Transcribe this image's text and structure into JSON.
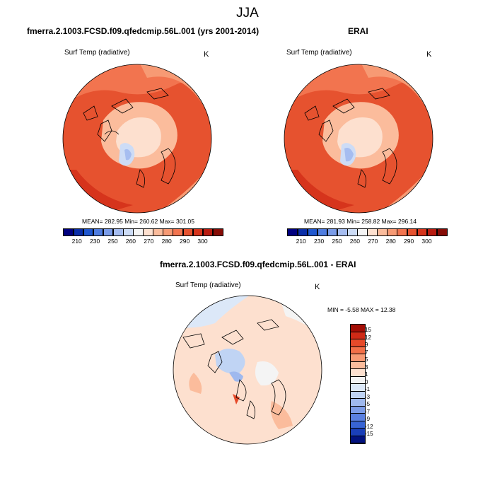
{
  "title": "JJA",
  "panel_left": {
    "title": "fmerra.2.1003.FCSD.f09.qfedcmip.56L.001 (yrs 2001-2014)",
    "variable": "Surf Temp (radiative)",
    "unit": "K",
    "stats": "MEAN= 282.95  Min= 260.62  Max= 301.05"
  },
  "panel_right": {
    "title": "ERAI",
    "variable": "Surf Temp (radiative)",
    "unit": "K",
    "stats": "MEAN= 281.93  Min= 258.82  Max= 296.14"
  },
  "panel_diff": {
    "title": "fmerra.2.1003.FCSD.f09.qfedcmip.56L.001 - ERAI",
    "variable": "Surf Temp (radiative)",
    "unit": "K",
    "stats": "MIN =  -5.58 MAX =  12.38"
  },
  "abs_colorbar": {
    "colors": [
      "#00007f",
      "#0a2ea8",
      "#1f57cf",
      "#4f7de0",
      "#7a9ce8",
      "#a6bdf0",
      "#cddcf6",
      "#f4f4f4",
      "#fde0cf",
      "#fbbc9c",
      "#f79a74",
      "#f2744f",
      "#e6522f",
      "#d6341c",
      "#b81b10",
      "#860c06"
    ],
    "tick_labels": [
      "210",
      "230",
      "250",
      "260",
      "270",
      "280",
      "290",
      "300"
    ]
  },
  "diff_colorbar": {
    "colors": [
      "#a30d05",
      "#cf2a16",
      "#e64a2a",
      "#f26f48",
      "#f79a74",
      "#fbbc9c",
      "#fde0cf",
      "#f4f4f4",
      "#dce8f8",
      "#c0d4f4",
      "#9fb9ee",
      "#7c9ce7",
      "#5a80e0",
      "#3864d4",
      "#1a3fb8",
      "#02127e"
    ],
    "tick_labels": [
      "15",
      "12",
      "9",
      "7",
      "5",
      "3",
      "1",
      "0",
      "-1",
      "-3",
      "-5",
      "-7",
      "-9",
      "-12",
      "-15"
    ]
  }
}
